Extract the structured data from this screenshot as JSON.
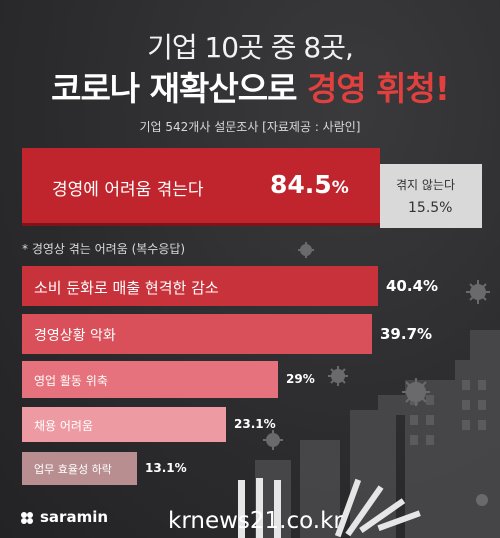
{
  "header": {
    "line1": "기업 10곳 중 8곳,",
    "line2_prefix": "코로나 재확산으로 ",
    "line2_highlight": "경영 휘청!",
    "survey": "기업 542개사 설문조사  [자료제공 : 사람인]"
  },
  "main_stat": {
    "label": "경영에 어려움 겪는다",
    "value": "84.5",
    "unit": "%"
  },
  "other_stat": {
    "label": "겪지 않는다",
    "value": "15.5%"
  },
  "note": "* 경영상 겪는 어려움 (복수응답)",
  "chart_data": {
    "type": "bar",
    "orientation": "horizontal",
    "title": "* 경영상 겪는 어려움 (복수응답)",
    "categories": [
      "소비 둔화로 매출 현격한 감소",
      "경영상황 악화",
      "영업 활동 위축",
      "채용 어려움",
      "업무 효율성 하락"
    ],
    "values": [
      40.4,
      39.7,
      29,
      23.1,
      13.1
    ],
    "value_labels": [
      "40.4%",
      "39.7%",
      "29%",
      "23.1%",
      "13.1%"
    ],
    "colors": [
      "#c8323b",
      "#d9505a",
      "#e5727c",
      "#ee9aa2",
      "#b88e90"
    ],
    "unit": "%"
  },
  "branding": {
    "logo_text": "saramin",
    "watermark": "krnews21.co.kr"
  }
}
